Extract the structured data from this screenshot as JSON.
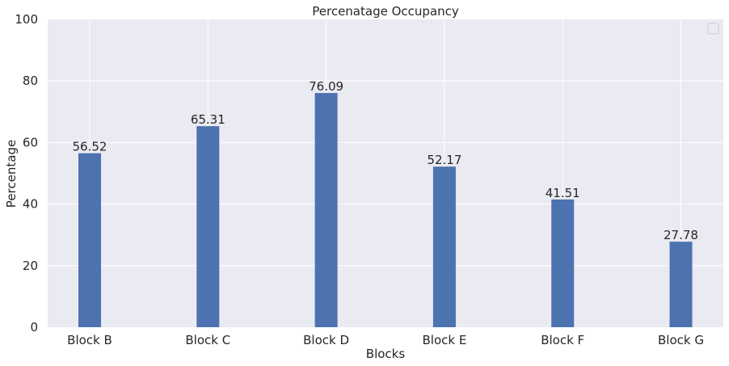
{
  "chart_data": {
    "type": "bar",
    "title": "Percenatage Occupancy",
    "xlabel": "Blocks",
    "ylabel": "Percentage",
    "categories": [
      "Block B",
      "Block C",
      "Block D",
      "Block E",
      "Block F",
      "Block G"
    ],
    "values": [
      56.52,
      65.31,
      76.09,
      52.17,
      41.51,
      27.78
    ],
    "value_labels": [
      "56.52",
      "65.31",
      "76.09",
      "52.17",
      "41.51",
      "27.78"
    ],
    "ylim": [
      0,
      100
    ],
    "yticks": [
      0,
      20,
      40,
      60,
      80,
      100
    ],
    "ytick_labels": [
      "0",
      "20",
      "40",
      "60",
      "80",
      "100"
    ],
    "grid": true,
    "legend": "top-right",
    "legend_entries": [],
    "colors": {
      "bar": "#4c72b0",
      "plot_background": "#eaeaf2",
      "grid": "#ffffff",
      "text": "#262626"
    }
  }
}
